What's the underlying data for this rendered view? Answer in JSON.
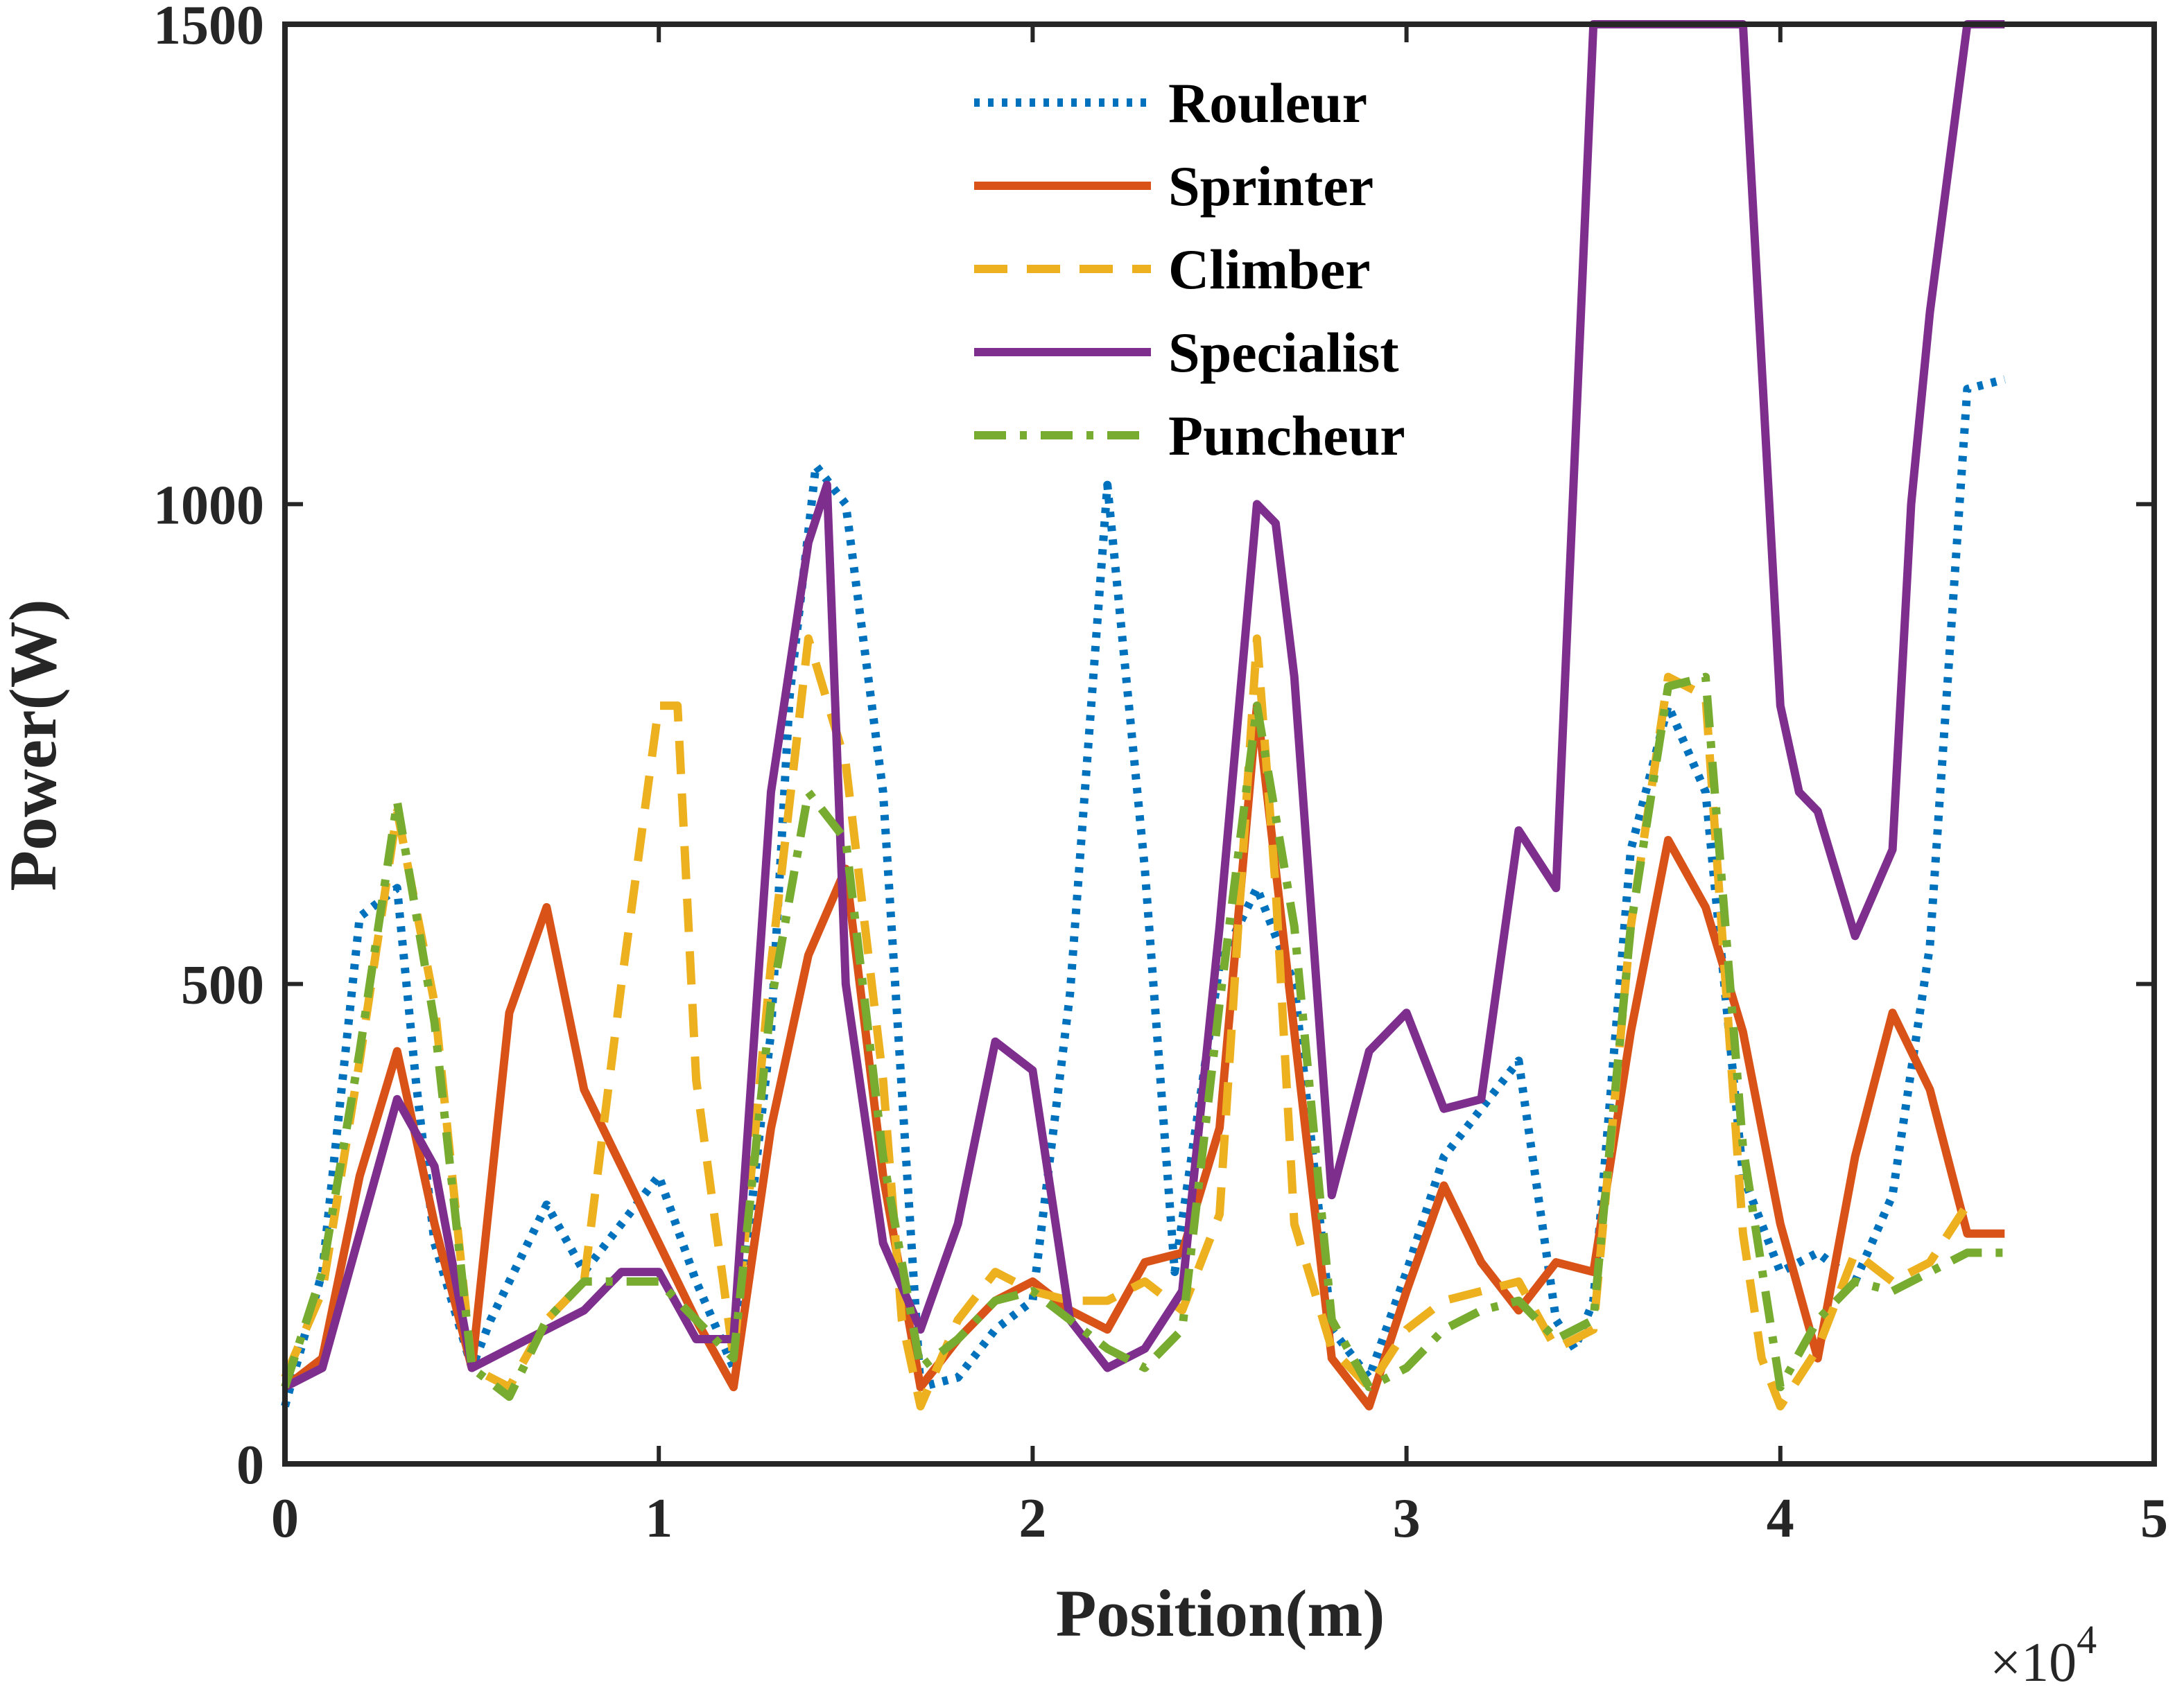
{
  "chart_data": {
    "type": "line",
    "title": "",
    "xlabel": "Position(m)",
    "ylabel": "Power(W)",
    "x_multiplier_label": "×10",
    "x_multiplier_exponent": "4",
    "xlim": [
      0,
      5
    ],
    "ylim": [
      0,
      1500
    ],
    "xticks": [
      "0",
      "1",
      "2",
      "3",
      "4",
      "5"
    ],
    "yticks": [
      "0",
      "500",
      "1000",
      "1500"
    ],
    "grid": false,
    "legend_position": "top-center",
    "series": [
      {
        "name": "Rouleur",
        "color": "#0072BD",
        "style": "dotted",
        "x": [
          0,
          0.1,
          0.2,
          0.3,
          0.35,
          0.4,
          0.5,
          0.55,
          0.7,
          0.8,
          0.9,
          1.0,
          1.1,
          1.2,
          1.3,
          1.35,
          1.42,
          1.5,
          1.6,
          1.7,
          1.8,
          1.9,
          2.0,
          2.1,
          2.2,
          2.3,
          2.38,
          2.5,
          2.6,
          2.7,
          2.8,
          2.9,
          3.0,
          3.1,
          3.2,
          3.3,
          3.4,
          3.45,
          3.5,
          3.6,
          3.7,
          3.8,
          3.9,
          4.0,
          4.1,
          4.2,
          4.3,
          4.4,
          4.5,
          4.6
        ],
        "y": [
          60,
          200,
          570,
          600,
          400,
          230,
          100,
          150,
          270,
          200,
          250,
          300,
          190,
          100,
          450,
          800,
          1040,
          1000,
          700,
          80,
          90,
          140,
          170,
          490,
          1020,
          620,
          200,
          520,
          600,
          500,
          140,
          90,
          200,
          320,
          370,
          420,
          150,
          120,
          170,
          640,
          790,
          700,
          300,
          200,
          220,
          190,
          280,
          540,
          1120,
          1130
        ]
      },
      {
        "name": "Sprinter",
        "color": "#D95319",
        "style": "solid",
        "x": [
          0,
          0.1,
          0.2,
          0.3,
          0.4,
          0.5,
          0.6,
          0.7,
          0.8,
          0.9,
          1.0,
          1.1,
          1.2,
          1.3,
          1.4,
          1.5,
          1.6,
          1.7,
          1.8,
          1.9,
          2.0,
          2.1,
          2.2,
          2.3,
          2.4,
          2.5,
          2.6,
          2.7,
          2.8,
          2.9,
          3.0,
          3.1,
          3.2,
          3.3,
          3.4,
          3.5,
          3.6,
          3.7,
          3.8,
          3.9,
          4.0,
          4.1,
          4.2,
          4.3,
          4.4,
          4.5,
          4.6
        ],
        "y": [
          80,
          110,
          300,
          430,
          250,
          100,
          470,
          580,
          390,
          310,
          230,
          150,
          80,
          350,
          530,
          620,
          300,
          80,
          130,
          170,
          190,
          160,
          140,
          210,
          220,
          350,
          790,
          450,
          110,
          60,
          180,
          290,
          210,
          160,
          210,
          200,
          450,
          650,
          580,
          450,
          250,
          110,
          320,
          470,
          390,
          240,
          240
        ]
      },
      {
        "name": "Climber",
        "color": "#EDB120",
        "style": "dashed",
        "x": [
          0,
          0.1,
          0.2,
          0.3,
          0.4,
          0.5,
          0.6,
          0.7,
          0.8,
          0.9,
          1.0,
          1.05,
          1.1,
          1.2,
          1.3,
          1.4,
          1.5,
          1.6,
          1.65,
          1.7,
          1.8,
          1.9,
          2.0,
          2.1,
          2.2,
          2.3,
          2.4,
          2.5,
          2.6,
          2.65,
          2.7,
          2.8,
          2.9,
          3.0,
          3.1,
          3.2,
          3.3,
          3.4,
          3.5,
          3.6,
          3.7,
          3.8,
          3.9,
          3.95,
          4.0,
          4.1,
          4.2,
          4.3,
          4.4,
          4.5
        ],
        "y": [
          90,
          180,
          420,
          680,
          480,
          100,
          80,
          150,
          190,
          500,
          790,
          790,
          400,
          110,
          520,
          860,
          730,
          400,
          150,
          60,
          150,
          200,
          180,
          170,
          170,
          190,
          160,
          260,
          860,
          600,
          250,
          120,
          80,
          140,
          170,
          180,
          190,
          120,
          140,
          560,
          820,
          800,
          240,
          110,
          60,
          120,
          220,
          190,
          210,
          270
        ]
      },
      {
        "name": "Specialist",
        "color": "#7E2F8E",
        "style": "solid",
        "x": [
          0,
          0.1,
          0.2,
          0.3,
          0.4,
          0.5,
          0.6,
          0.7,
          0.8,
          0.9,
          1.0,
          1.1,
          1.2,
          1.3,
          1.4,
          1.45,
          1.5,
          1.6,
          1.7,
          1.8,
          1.9,
          2.0,
          2.1,
          2.2,
          2.3,
          2.4,
          2.5,
          2.6,
          2.65,
          2.7,
          2.8,
          2.9,
          3.0,
          3.1,
          3.2,
          3.3,
          3.4,
          3.5,
          3.6,
          3.7,
          3.8,
          3.9,
          4.0,
          4.05,
          4.1,
          4.2,
          4.3,
          4.35,
          4.4,
          4.5,
          4.6
        ],
        "y": [
          80,
          100,
          240,
          380,
          310,
          100,
          120,
          140,
          160,
          200,
          200,
          130,
          130,
          700,
          960,
          1020,
          500,
          230,
          140,
          250,
          440,
          410,
          150,
          100,
          120,
          180,
          560,
          1000,
          980,
          820,
          280,
          430,
          470,
          370,
          380,
          660,
          600,
          1500,
          1500,
          1500,
          1500,
          1500,
          790,
          700,
          680,
          550,
          640,
          1000,
          1200,
          1500,
          1500
        ]
      },
      {
        "name": "Puncheur",
        "color": "#77AC30",
        "style": "dashdot",
        "x": [
          0,
          0.1,
          0.2,
          0.3,
          0.4,
          0.5,
          0.6,
          0.7,
          0.8,
          0.9,
          1.0,
          1.1,
          1.2,
          1.3,
          1.4,
          1.5,
          1.6,
          1.7,
          1.8,
          1.9,
          2.0,
          2.1,
          2.2,
          2.3,
          2.4,
          2.5,
          2.6,
          2.7,
          2.8,
          2.9,
          3.0,
          3.1,
          3.2,
          3.3,
          3.4,
          3.5,
          3.6,
          3.7,
          3.8,
          3.9,
          4.0,
          4.1,
          4.2,
          4.3,
          4.4,
          4.5,
          4.6
        ],
        "y": [
          80,
          200,
          430,
          690,
          460,
          100,
          70,
          150,
          190,
          190,
          190,
          150,
          110,
          480,
          700,
          650,
          320,
          100,
          130,
          170,
          180,
          150,
          120,
          100,
          140,
          480,
          790,
          560,
          150,
          80,
          100,
          140,
          160,
          170,
          130,
          150,
          560,
          810,
          820,
          330,
          80,
          150,
          190,
          180,
          200,
          220,
          220
        ]
      }
    ]
  }
}
